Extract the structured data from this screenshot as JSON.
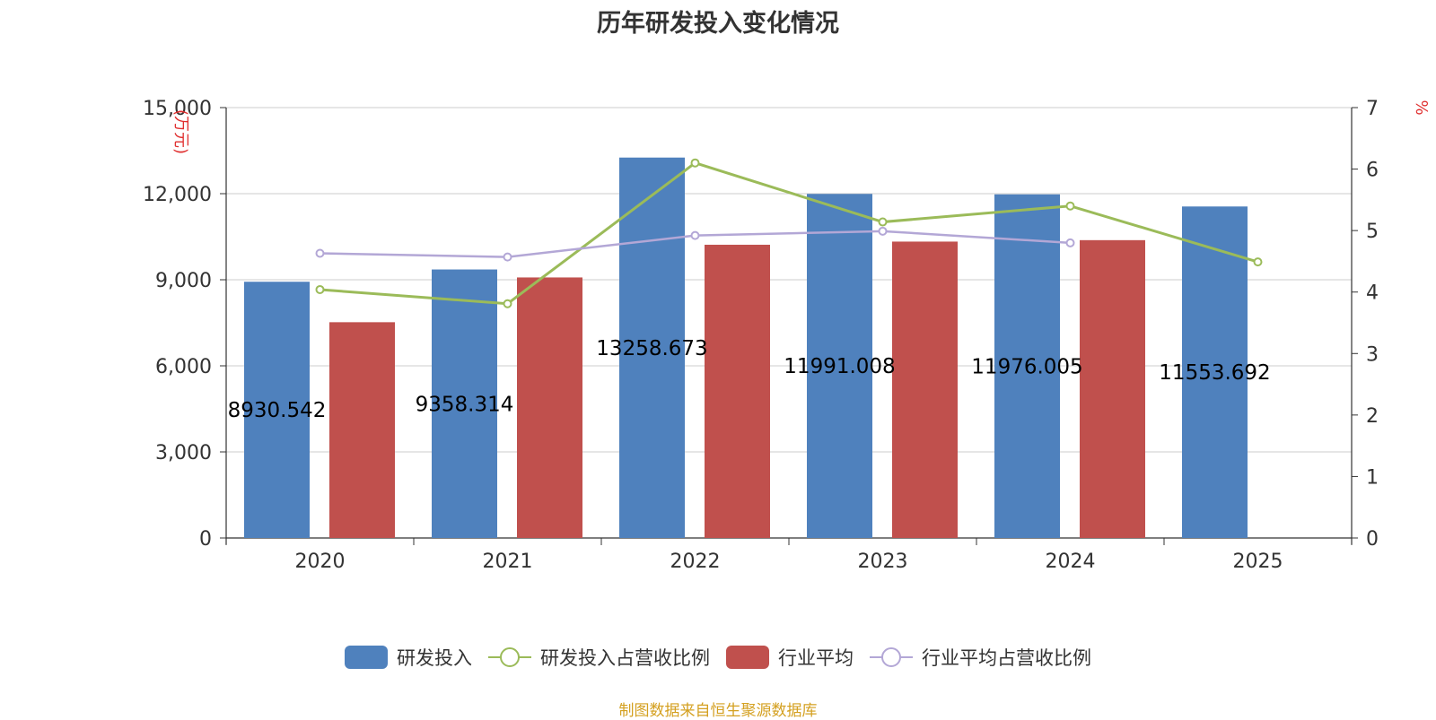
{
  "chart_data": {
    "type": "bar",
    "title": "历年研发投入变化情况",
    "categories": [
      "2020",
      "2021",
      "2022",
      "2023",
      "2024",
      "2025"
    ],
    "y_left": {
      "unit_label": "(万元)",
      "lim": [
        0,
        15000
      ],
      "ticks": [
        "0",
        "3,000",
        "6,000",
        "9,000",
        "12,000",
        "15,000"
      ]
    },
    "y_right": {
      "unit_label": "%",
      "lim": [
        0,
        7
      ],
      "ticks": [
        "0",
        "1",
        "2",
        "3",
        "4",
        "5",
        "6",
        "7"
      ]
    },
    "bar_series": [
      {
        "name": "研发投入",
        "color": "#4f81bd",
        "values": [
          8930.542,
          9358.314,
          13258.673,
          11991.008,
          11976.005,
          11553.692
        ],
        "labels": [
          "8930.542",
          "9358.314",
          "13258.673",
          "11991.008",
          "11976.005",
          "11553.692"
        ]
      },
      {
        "name": "行业平均",
        "color": "#c0504d",
        "values": [
          7520,
          9080,
          10220,
          10330,
          10380,
          null
        ]
      }
    ],
    "line_series": [
      {
        "name": "研发投入占营收比例",
        "color": "#9bbb59",
        "values": [
          4.04,
          3.81,
          6.1,
          5.14,
          5.4,
          4.49
        ]
      },
      {
        "name": "行业平均占营收比例",
        "color": "#b3a7d6",
        "values": [
          4.63,
          4.57,
          4.92,
          4.99,
          4.8,
          null
        ]
      }
    ],
    "grid": true,
    "legend_position": "bottom"
  },
  "source_note": "制图数据来自恒生聚源数据库"
}
